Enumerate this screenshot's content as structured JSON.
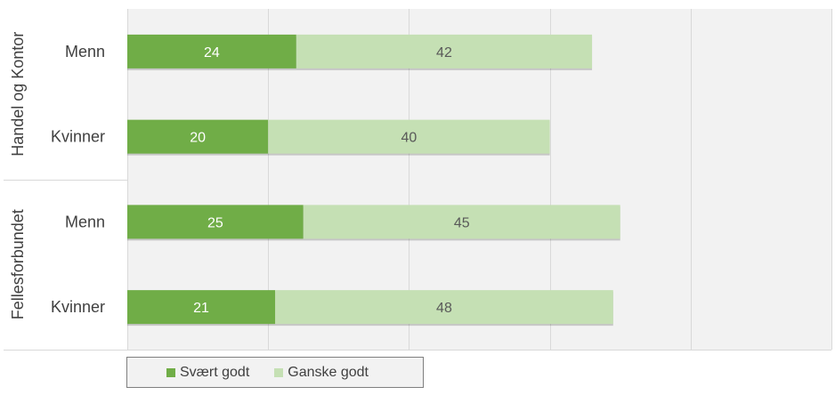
{
  "chart_data": {
    "type": "bar",
    "orientation": "horizontal",
    "stacked": true,
    "groups": [
      {
        "label": "Handel og Kontor",
        "categories": [
          "Menn",
          "Kvinner"
        ]
      },
      {
        "label": "Fellesforbundet",
        "categories": [
          "Menn",
          "Kvinner"
        ]
      }
    ],
    "series": [
      {
        "name": "Svært godt",
        "color": "#70ad47",
        "values": [
          24,
          20,
          25,
          21
        ]
      },
      {
        "name": "Ganske godt",
        "color": "#c5e0b4",
        "values": [
          42,
          40,
          45,
          48
        ]
      }
    ],
    "xlim": [
      0,
      100
    ],
    "grid": true,
    "legend_position": "bottom-left"
  }
}
